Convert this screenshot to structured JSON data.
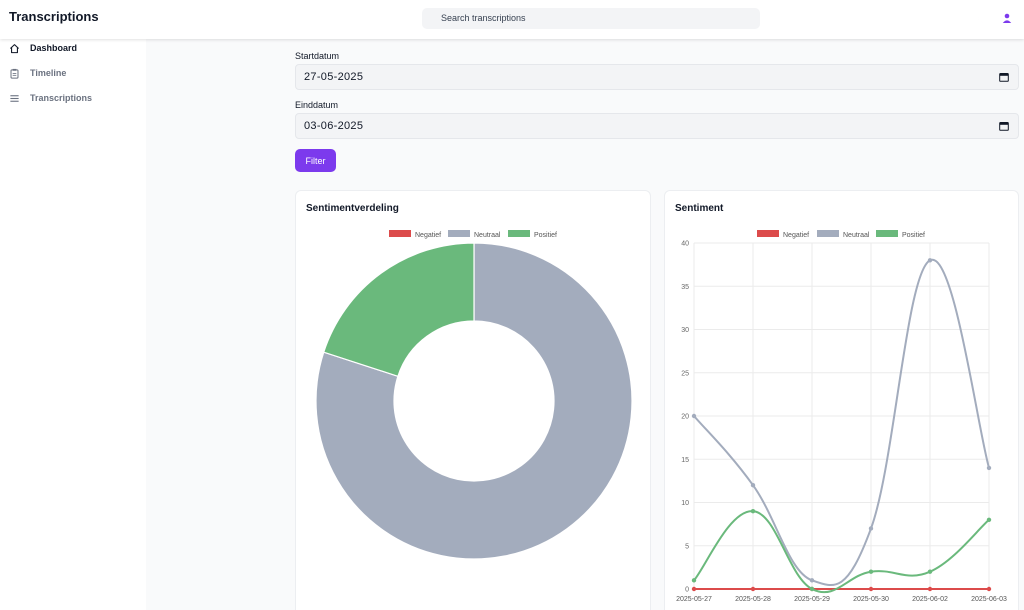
{
  "header": {
    "title": "Transcriptions",
    "search_placeholder": "Search transcriptions"
  },
  "sidebar": {
    "items": [
      {
        "label": "Dashboard",
        "icon": "home-icon",
        "active": true
      },
      {
        "label": "Timeline",
        "icon": "clipboard-icon",
        "active": false
      },
      {
        "label": "Transcriptions",
        "icon": "list-icon",
        "active": false
      }
    ]
  },
  "filters": {
    "start_label": "Startdatum",
    "start_value": "27-05-2025",
    "end_label": "Einddatum",
    "end_value": "03-06-2025",
    "filter_button": "Filter"
  },
  "colors": {
    "accent": "#7c3aed",
    "negatief": "#dc4b4b",
    "neutraal": "#a3acbd",
    "positief": "#6ab97c"
  },
  "chart_data": [
    {
      "type": "pie",
      "title": "Sentimentverdeling",
      "legend": [
        "Negatief",
        "Neutraal",
        "Positief"
      ],
      "legend_position": "top",
      "labels": [
        "Negatief",
        "Neutraal",
        "Positief"
      ],
      "values": [
        0,
        80,
        20
      ]
    },
    {
      "type": "line",
      "title": "Sentiment",
      "legend_position": "top",
      "x": [
        "2025-05-27",
        "2025-05-28",
        "2025-05-29",
        "2025-05-30",
        "2025-06-02",
        "2025-06-03"
      ],
      "series": [
        {
          "name": "Negatief",
          "values": [
            0,
            0,
            0,
            0,
            0,
            0
          ]
        },
        {
          "name": "Neutraal",
          "values": [
            20,
            12,
            1,
            7,
            38,
            14
          ]
        },
        {
          "name": "Positief",
          "values": [
            1,
            9,
            0,
            2,
            2,
            8
          ]
        }
      ],
      "ylim": [
        0,
        40
      ],
      "yticks": [
        "0",
        "5",
        "10",
        "15",
        "20",
        "25",
        "30",
        "35",
        "40"
      ],
      "grid": true
    }
  ]
}
